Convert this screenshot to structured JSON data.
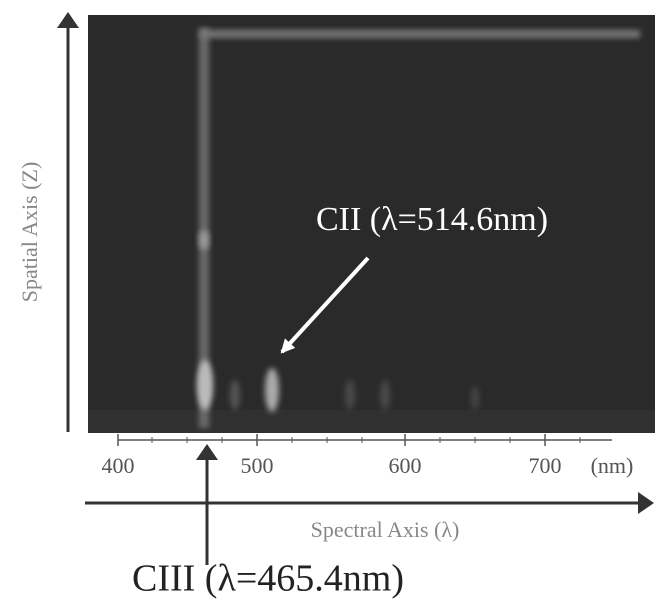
{
  "image": {
    "annotation_strong": "CII (λ=514.6nm)"
  },
  "axes": {
    "spatial_label": "Spatial Axis (Z)",
    "spectral_label": "Spectral Axis (λ)",
    "ticks": [
      "400",
      "500",
      "600",
      "700"
    ],
    "unit": "(nm)"
  },
  "annotation_bottom": "CIII (λ=465.4nm)"
}
